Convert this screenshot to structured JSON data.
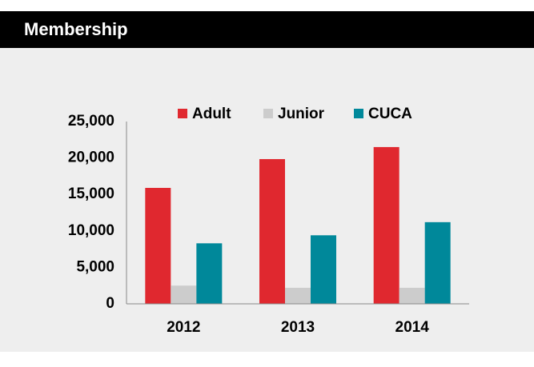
{
  "chart_data": {
    "type": "bar",
    "title": "Membership",
    "categories": [
      "2012",
      "2013",
      "2014"
    ],
    "series": [
      {
        "name": "Adult",
        "color": "#e0282f",
        "values": [
          15900,
          19850,
          21500
        ]
      },
      {
        "name": "Junior",
        "color": "#cccccc",
        "values": [
          2500,
          2200,
          2200
        ]
      },
      {
        "name": "CUCA",
        "color": "#00889a",
        "values": [
          8300,
          9400,
          11200
        ]
      }
    ],
    "ylim": [
      0,
      25000
    ],
    "yticks": [
      0,
      {
        "value": 5000,
        "label": "5,000"
      },
      {
        "value": 10000,
        "label": "10,000"
      },
      {
        "value": 15000,
        "label": "15,000"
      },
      {
        "value": 20000,
        "label": "20,000"
      },
      {
        "value": 25000,
        "label": "25,000"
      }
    ],
    "grid": false
  }
}
